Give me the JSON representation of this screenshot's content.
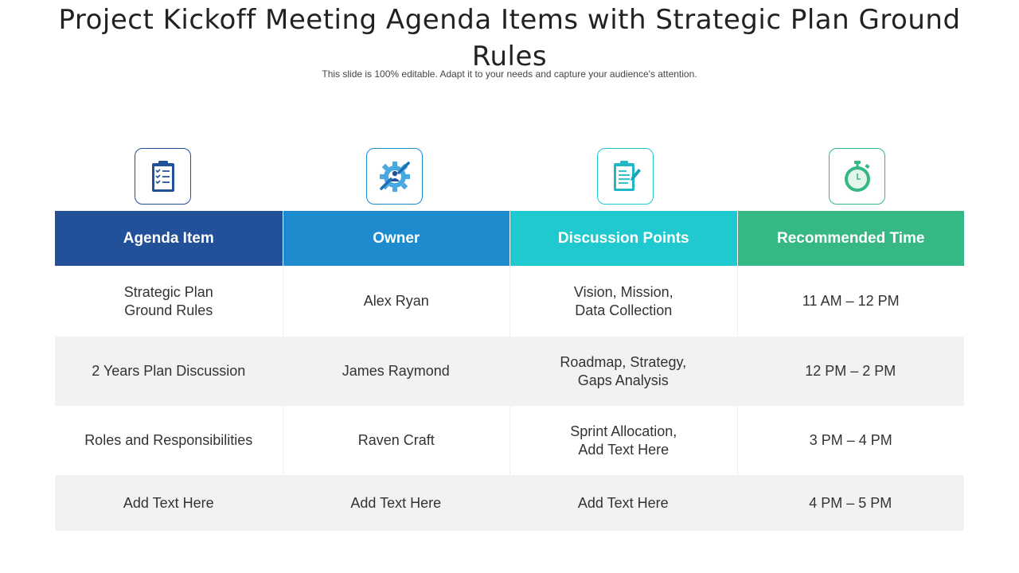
{
  "title": "Project Kickoff Meeting Agenda Items with Strategic Plan Ground Rules",
  "subtitle": "This slide is 100% editable. Adapt it to your needs and capture your audience's attention.",
  "colors": {
    "col1": "#22519a",
    "col2": "#1e8bcf",
    "col3": "#20c9d0",
    "col4": "#36b884",
    "alt_row": "#f2f2f2"
  },
  "icons": [
    "checklist-clipboard-icon",
    "gear-wrench-person-icon",
    "document-edit-icon",
    "stopwatch-icon"
  ],
  "headers": [
    "Agenda Item",
    "Owner",
    "Discussion Points",
    "Recommended Time"
  ],
  "rows": [
    [
      "Strategic Plan\nGround Rules",
      "Alex Ryan",
      "Vision, Mission,\nData Collection",
      "11 AM – 12 PM"
    ],
    [
      "2 Years Plan Discussion",
      "James Raymond",
      "Roadmap, Strategy,\nGaps Analysis",
      "12 PM – 2 PM"
    ],
    [
      "Roles and Responsibilities",
      "Raven Craft",
      "Sprint Allocation,\nAdd Text Here",
      "3 PM – 4 PM"
    ],
    [
      "Add Text Here",
      "Add Text Here",
      "Add Text Here",
      "4 PM – 5 PM"
    ]
  ]
}
